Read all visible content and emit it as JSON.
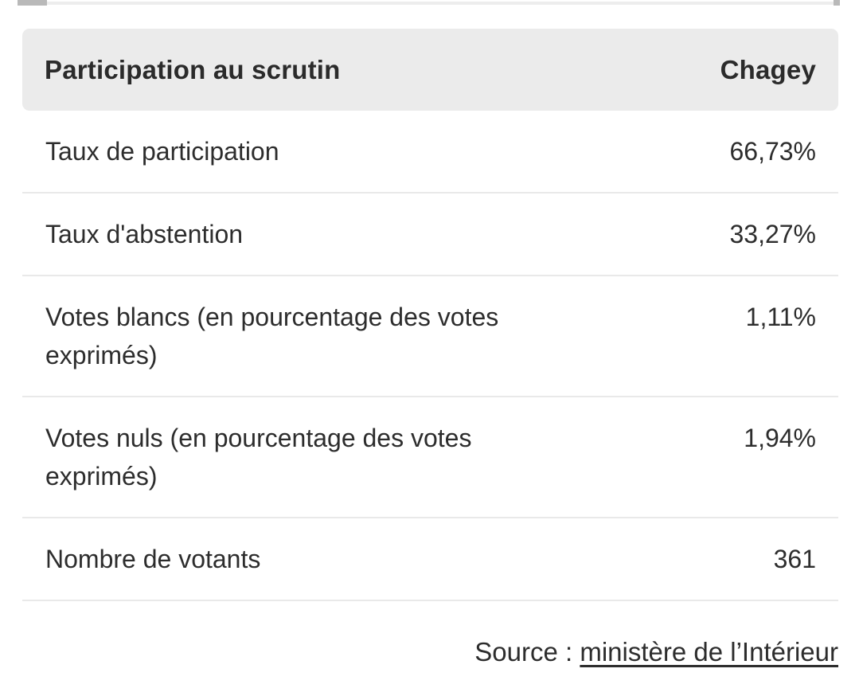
{
  "scrollbar": {
    "orientation": "horizontal",
    "position": "top"
  },
  "table": {
    "header": {
      "title": "Participation au scrutin",
      "commune": "Chagey"
    },
    "rows": [
      {
        "label": "Taux de participation",
        "value": "66,73%"
      },
      {
        "label": "Taux d'abstention",
        "value": "33,27%"
      },
      {
        "label": "Votes blancs (en pourcentage des votes exprimés)",
        "value": "1,11%"
      },
      {
        "label": "Votes nuls (en pourcentage des votes exprimés)",
        "value": "1,94%"
      },
      {
        "label": "Nombre de votants",
        "value": "361"
      }
    ]
  },
  "footer": {
    "source_prefix": "Source : ",
    "source_link": "ministère de l’Intérieur"
  },
  "colors": {
    "header_bg": "#ebebeb",
    "text": "#2d2d2d",
    "divider": "#e9e9e9",
    "scrollbar_thumb": "#b9b9b9",
    "scrollbar_track": "#ededed"
  }
}
